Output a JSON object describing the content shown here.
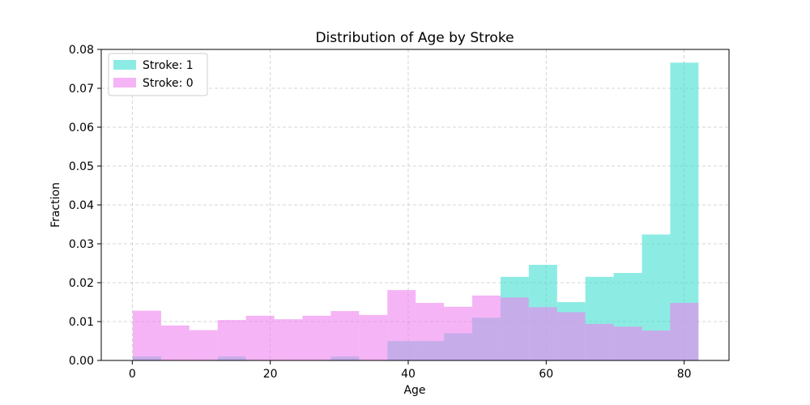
{
  "chart_data": {
    "type": "bar",
    "title": "Distribution of Age by Stroke",
    "xlabel": "Age",
    "ylabel": "Fraction",
    "xlim": [
      -4.5,
      86.5
    ],
    "ylim": [
      0,
      0.08
    ],
    "xticks": [
      0,
      20,
      40,
      60,
      80
    ],
    "yticks": [
      0.0,
      0.01,
      0.02,
      0.03,
      0.04,
      0.05,
      0.06,
      0.07,
      0.08
    ],
    "grid": true,
    "legend_position": "upper-left",
    "bin_edges": [
      0.08,
      4.18,
      8.28,
      12.38,
      16.48,
      20.58,
      24.68,
      28.78,
      32.88,
      36.98,
      41.08,
      45.18,
      49.28,
      53.38,
      57.48,
      61.58,
      65.68,
      69.78,
      73.88,
      77.98,
      82.08
    ],
    "series": [
      {
        "name": "Stroke: 1",
        "color": "#40e0d0",
        "alpha": 0.6,
        "values": [
          0.001,
          0,
          0,
          0.001,
          0,
          0,
          0,
          0.001,
          0,
          0.005,
          0.005,
          0.007,
          0.011,
          0.0215,
          0.0246,
          0.015,
          0.0215,
          0.0225,
          0.0324,
          0.0766
        ]
      },
      {
        "name": "Stroke: 0",
        "color": "#ee82ee",
        "alpha": 0.6,
        "values": [
          0.0128,
          0.009,
          0.0078,
          0.0104,
          0.0115,
          0.0106,
          0.0115,
          0.0127,
          0.0117,
          0.0181,
          0.0148,
          0.0138,
          0.0167,
          0.0162,
          0.0137,
          0.0124,
          0.0094,
          0.0087,
          0.0077,
          0.0148
        ]
      }
    ]
  }
}
